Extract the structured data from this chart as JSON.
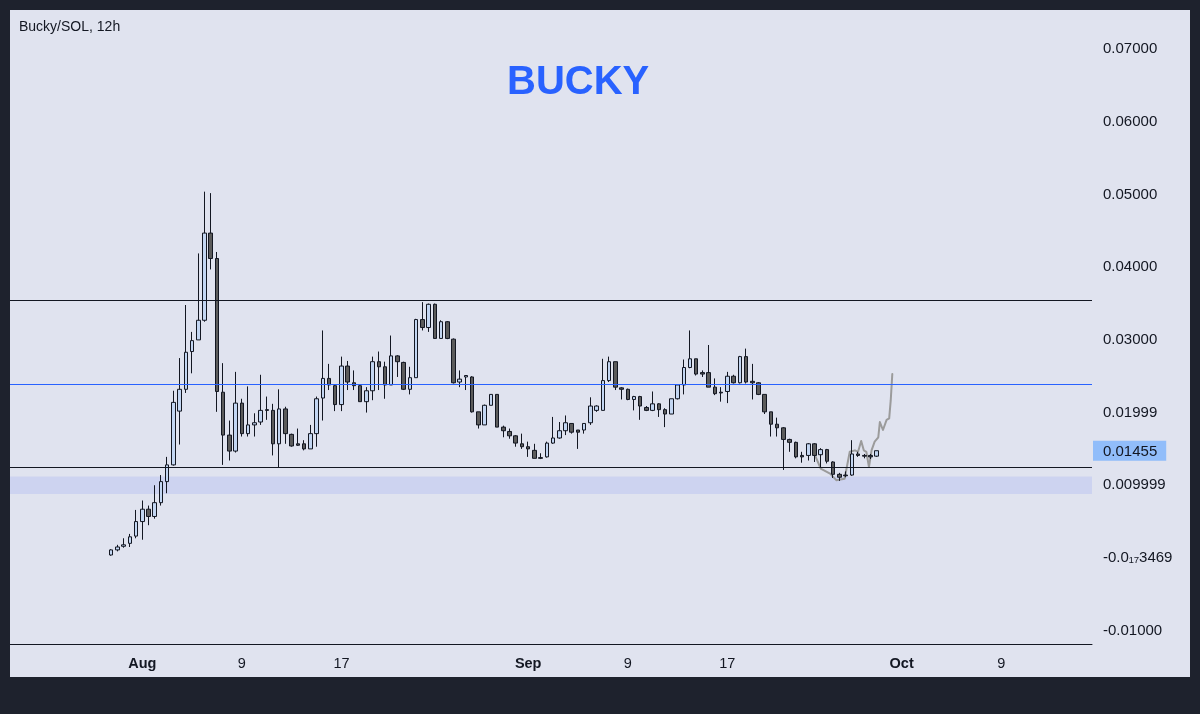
{
  "chart_data": {
    "type": "candlestick",
    "title": "BUCKY",
    "subtitle": "Bucky/SOL, 12h",
    "x": [
      "--07-29T12:00",
      "--07-30T00:00",
      "--07-30T12:00",
      "--07-31T00:00",
      "--07-31T12:00",
      "--08-01T00:00",
      "--08-01T12:00",
      "--08-02T00:00",
      "--08-02T12:00",
      "--08-03T00:00",
      "--08-03T12:00",
      "--08-04T00:00",
      "--08-04T12:00",
      "--08-05T00:00",
      "--08-05T12:00",
      "--08-06T00:00",
      "--08-06T12:00",
      "--08-07T00:00",
      "--08-07T12:00",
      "--08-08T00:00",
      "--08-08T12:00",
      "--08-09T00:00",
      "--08-09T12:00",
      "--08-10T00:00",
      "--08-10T12:00",
      "--08-11T00:00",
      "--08-11T12:00",
      "--08-12T00:00",
      "--08-12T12:00",
      "--08-13T00:00",
      "--08-13T12:00",
      "--08-14T00:00",
      "--08-14T12:00",
      "--08-15T00:00",
      "--08-15T12:00",
      "--08-16T00:00",
      "--08-16T12:00",
      "--08-17T00:00",
      "--08-17T12:00",
      "--08-18T00:00",
      "--08-18T12:00",
      "--08-19T00:00",
      "--08-19T12:00",
      "--08-20T00:00",
      "--08-20T12:00",
      "--08-21T00:00",
      "--08-21T12:00",
      "--08-22T00:00",
      "--08-22T12:00",
      "--08-23T00:00",
      "--08-23T12:00",
      "--08-24T00:00",
      "--08-24T12:00",
      "--08-25T00:00",
      "--08-25T12:00",
      "--08-26T00:00",
      "--08-26T12:00",
      "--08-27T00:00",
      "--08-27T12:00",
      "--08-28T00:00",
      "--08-28T12:00",
      "--08-29T00:00",
      "--08-29T12:00",
      "--08-30T00:00",
      "--08-30T12:00",
      "--08-31T00:00",
      "--08-31T12:00",
      "--09-01T00:00",
      "--09-01T12:00",
      "--09-02T00:00",
      "--09-02T12:00",
      "--09-03T00:00",
      "--09-03T12:00",
      "--09-04T00:00",
      "--09-04T12:00",
      "--09-05T00:00",
      "--09-05T12:00",
      "--09-06T00:00",
      "--09-06T12:00",
      "--09-07T00:00",
      "--09-07T12:00",
      "--09-08T00:00",
      "--09-08T12:00",
      "--09-09T00:00",
      "--09-09T12:00",
      "--09-10T00:00",
      "--09-10T12:00",
      "--09-11T00:00",
      "--09-11T12:00",
      "--09-12T00:00",
      "--09-12T12:00",
      "--09-13T00:00",
      "--09-13T12:00",
      "--09-14T00:00",
      "--09-14T12:00",
      "--09-15T00:00",
      "--09-15T12:00",
      "--09-16T00:00",
      "--09-16T12:00",
      "--09-17T00:00",
      "--09-17T12:00",
      "--09-18T00:00",
      "--09-18T12:00",
      "--09-19T00:00",
      "--09-19T12:00",
      "--09-20T00:00",
      "--09-20T12:00",
      "--09-21T00:00",
      "--09-21T12:00",
      "--09-22T00:00",
      "--09-22T12:00",
      "--09-23T00:00",
      "--09-23T12:00",
      "--09-24T00:00",
      "--09-24T12:00",
      "--09-25T00:00",
      "--09-25T12:00",
      "--09-26T00:00",
      "--09-26T12:00",
      "--09-27T00:00",
      "--09-27T12:00",
      "--09-28T00:00",
      "--09-28T12:00",
      "--09-29T00:00"
    ],
    "ohlc": [
      [
        0.0002,
        0.001,
        0.0001,
        0.0009
      ],
      [
        0.0009,
        0.0016,
        0.0007,
        0.0013
      ],
      [
        0.0014,
        0.0025,
        0.0012,
        0.0016
      ],
      [
        0.0018,
        0.0031,
        0.0013,
        0.0027
      ],
      [
        0.0028,
        0.0064,
        0.0025,
        0.0048
      ],
      [
        0.0048,
        0.0077,
        0.0023,
        0.0065
      ],
      [
        0.0065,
        0.007,
        0.0043,
        0.0055
      ],
      [
        0.0055,
        0.0098,
        0.0052,
        0.0074
      ],
      [
        0.0074,
        0.0112,
        0.007,
        0.0103
      ],
      [
        0.0103,
        0.0137,
        0.0087,
        0.0126
      ],
      [
        0.0126,
        0.0228,
        0.0125,
        0.0212
      ],
      [
        0.02,
        0.0273,
        0.0154,
        0.023
      ],
      [
        0.023,
        0.0346,
        0.0225,
        0.0281
      ],
      [
        0.0282,
        0.0309,
        0.0252,
        0.0297
      ],
      [
        0.0298,
        0.0417,
        0.0298,
        0.0325
      ],
      [
        0.0325,
        0.0502,
        0.0323,
        0.0445
      ],
      [
        0.0445,
        0.05,
        0.0395,
        0.041
      ],
      [
        0.041,
        0.0419,
        0.0199,
        0.0227
      ],
      [
        0.0226,
        0.0266,
        0.0126,
        0.0167
      ],
      [
        0.0167,
        0.0187,
        0.0132,
        0.0145
      ],
      [
        0.0145,
        0.0254,
        0.0143,
        0.0211
      ],
      [
        0.0211,
        0.0217,
        0.0165,
        0.0169
      ],
      [
        0.0169,
        0.0234,
        0.0165,
        0.0181
      ],
      [
        0.0181,
        0.0197,
        0.0165,
        0.0184
      ],
      [
        0.0185,
        0.025,
        0.0181,
        0.0201
      ],
      [
        0.0202,
        0.022,
        0.0188,
        0.0201
      ],
      [
        0.0201,
        0.021,
        0.0139,
        0.0155
      ],
      [
        0.0155,
        0.023,
        0.0123,
        0.0203
      ],
      [
        0.0203,
        0.0206,
        0.0155,
        0.0169
      ],
      [
        0.0168,
        0.0169,
        0.0151,
        0.0152
      ],
      [
        0.0155,
        0.0176,
        0.0152,
        0.0153
      ],
      [
        0.0155,
        0.016,
        0.0146,
        0.0148
      ],
      [
        0.0148,
        0.0181,
        0.0148,
        0.0169
      ],
      [
        0.0169,
        0.022,
        0.0151,
        0.0217
      ],
      [
        0.0218,
        0.0311,
        0.0187,
        0.0245
      ],
      [
        0.0245,
        0.0265,
        0.0229,
        0.0236
      ],
      [
        0.0235,
        0.0236,
        0.02,
        0.0209
      ],
      [
        0.0209,
        0.0275,
        0.02,
        0.0262
      ],
      [
        0.0262,
        0.0269,
        0.0229,
        0.024
      ],
      [
        0.0239,
        0.0256,
        0.0229,
        0.0235
      ],
      [
        0.0235,
        0.0236,
        0.0213,
        0.0213
      ],
      [
        0.0213,
        0.0233,
        0.0198,
        0.0228
      ],
      [
        0.0228,
        0.0275,
        0.0215,
        0.0268
      ],
      [
        0.0268,
        0.0282,
        0.0229,
        0.0261
      ],
      [
        0.0261,
        0.0268,
        0.0217,
        0.0236
      ],
      [
        0.0236,
        0.0304,
        0.0236,
        0.0276
      ],
      [
        0.0276,
        0.0277,
        0.0247,
        0.0268
      ],
      [
        0.0267,
        0.0268,
        0.0229,
        0.023
      ],
      [
        0.023,
        0.0261,
        0.0223,
        0.0246
      ],
      [
        0.0246,
        0.0327,
        0.0246,
        0.0326
      ],
      [
        0.0326,
        0.035,
        0.0311,
        0.0315
      ],
      [
        0.0315,
        0.0348,
        0.0309,
        0.0347
      ],
      [
        0.0347,
        0.0348,
        0.03,
        0.03
      ],
      [
        0.03,
        0.0325,
        0.03,
        0.0323
      ],
      [
        0.0323,
        0.0324,
        0.0299,
        0.03
      ],
      [
        0.0299,
        0.03,
        0.0238,
        0.0239
      ],
      [
        0.024,
        0.0256,
        0.0233,
        0.0244
      ],
      [
        0.0247,
        0.0249,
        0.0229,
        0.0249
      ],
      [
        0.0247,
        0.0248,
        0.0198,
        0.0199
      ],
      [
        0.0199,
        0.0199,
        0.0176,
        0.0181
      ],
      [
        0.0181,
        0.0209,
        0.0181,
        0.0208
      ],
      [
        0.0208,
        0.0223,
        0.0208,
        0.0223
      ],
      [
        0.0223,
        0.0223,
        0.0178,
        0.0178
      ],
      [
        0.0178,
        0.018,
        0.0164,
        0.0173
      ],
      [
        0.0172,
        0.0176,
        0.0162,
        0.0166
      ],
      [
        0.0166,
        0.0167,
        0.0151,
        0.0156
      ],
      [
        0.0155,
        0.0169,
        0.0148,
        0.0151
      ],
      [
        0.0151,
        0.0158,
        0.0137,
        0.0148
      ],
      [
        0.0146,
        0.0155,
        0.0135,
        0.0135
      ],
      [
        0.0136,
        0.0142,
        0.0134,
        0.0135
      ],
      [
        0.0137,
        0.0158,
        0.0136,
        0.0156
      ],
      [
        0.0156,
        0.0192,
        0.0155,
        0.0163
      ],
      [
        0.0163,
        0.0185,
        0.0162,
        0.0173
      ],
      [
        0.0173,
        0.0194,
        0.0167,
        0.0184
      ],
      [
        0.0183,
        0.0183,
        0.0169,
        0.0171
      ],
      [
        0.0174,
        0.0174,
        0.0148,
        0.0171
      ],
      [
        0.0174,
        0.0183,
        0.0169,
        0.0183
      ],
      [
        0.0184,
        0.0219,
        0.0181,
        0.0207
      ],
      [
        0.0201,
        0.0208,
        0.0199,
        0.0207
      ],
      [
        0.0201,
        0.0272,
        0.0201,
        0.0242
      ],
      [
        0.0242,
        0.0275,
        0.024,
        0.0268
      ],
      [
        0.0268,
        0.0268,
        0.0229,
        0.0233
      ],
      [
        0.0232,
        0.0233,
        0.0216,
        0.023
      ],
      [
        0.023,
        0.0231,
        0.0215,
        0.0216
      ],
      [
        0.0216,
        0.0221,
        0.0201,
        0.022
      ],
      [
        0.022,
        0.0221,
        0.0188,
        0.0207
      ],
      [
        0.0205,
        0.0207,
        0.02,
        0.0201
      ],
      [
        0.0201,
        0.0227,
        0.02,
        0.021
      ],
      [
        0.021,
        0.0211,
        0.0192,
        0.0202
      ],
      [
        0.0202,
        0.0204,
        0.0178,
        0.0196
      ],
      [
        0.0196,
        0.0217,
        0.0196,
        0.0217
      ],
      [
        0.0217,
        0.0237,
        0.0216,
        0.0236
      ],
      [
        0.0236,
        0.0271,
        0.0223,
        0.026
      ],
      [
        0.026,
        0.0311,
        0.0259,
        0.0272
      ],
      [
        0.0272,
        0.0272,
        0.0249,
        0.0251
      ],
      [
        0.0253,
        0.0256,
        0.0247,
        0.0251
      ],
      [
        0.0253,
        0.0291,
        0.0233,
        0.0233
      ],
      [
        0.0233,
        0.0245,
        0.0222,
        0.0224
      ],
      [
        0.0226,
        0.0233,
        0.0213,
        0.0225
      ],
      [
        0.0227,
        0.0254,
        0.0211,
        0.0248
      ],
      [
        0.0248,
        0.025,
        0.0238,
        0.0239
      ],
      [
        0.0239,
        0.0276,
        0.0238,
        0.0275
      ],
      [
        0.0275,
        0.0286,
        0.0238,
        0.024
      ],
      [
        0.0241,
        0.0265,
        0.0216,
        0.0239
      ],
      [
        0.0239,
        0.024,
        0.0222,
        0.0223
      ],
      [
        0.0223,
        0.0223,
        0.0196,
        0.0199
      ],
      [
        0.0199,
        0.0199,
        0.0165,
        0.0182
      ],
      [
        0.0182,
        0.0191,
        0.0165,
        0.0177
      ],
      [
        0.0177,
        0.0178,
        0.0119,
        0.0161
      ],
      [
        0.0161,
        0.0162,
        0.0144,
        0.0157
      ],
      [
        0.0157,
        0.0158,
        0.0135,
        0.0137
      ],
      [
        0.0139,
        0.0144,
        0.0129,
        0.0137
      ],
      [
        0.0139,
        0.0156,
        0.0132,
        0.0155
      ],
      [
        0.0155,
        0.0156,
        0.013,
        0.0139
      ],
      [
        0.014,
        0.0149,
        0.0123,
        0.0147
      ],
      [
        0.0147,
        0.0148,
        0.0128,
        0.0131
      ],
      [
        0.013,
        0.0131,
        0.0108,
        0.0113
      ],
      [
        0.0113,
        0.0115,
        0.0104,
        0.0109
      ],
      [
        0.0112,
        0.0117,
        0.0109,
        0.0111
      ],
      [
        0.0112,
        0.016,
        0.0111,
        0.0141
      ],
      [
        0.0141,
        0.0144,
        0.0137,
        0.0139
      ],
      [
        0.0139,
        0.0141,
        0.0135,
        0.0138
      ],
      [
        0.0139,
        0.0141,
        0.0134,
        0.0137
      ],
      [
        0.0138,
        0.01455,
        0.0137,
        0.01455
      ]
    ],
    "colors": [
      "#c3d6f2",
      "#c3d6f2",
      "#c3d6f2",
      "#c3d6f2",
      "#c3d6f2",
      "#c3d6f2",
      "#5b5b5b",
      "#c3d6f2",
      "#c3d6f2",
      "#c3d6f2",
      "#c3d6f2",
      "#c3d6f2",
      "#c3d6f2",
      "#c3d6f2",
      "#c3d6f2",
      "#c3d6f2",
      "#5b5b5b",
      "#5b5b5b",
      "#5b5b5b",
      "#5b5b5b",
      "#c3d6f2",
      "#5b5b5b",
      "#c3d6f2",
      "#c3d6f2",
      "#c3d6f2",
      "#5b5b5b",
      "#5b5b5b",
      "#c3d6f2",
      "#5b5b5b",
      "#5b5b5b",
      "#5b5b5b",
      "#5b5b5b",
      "#c3d6f2",
      "#c3d6f2",
      "#c3d6f2",
      "#5b5b5b",
      "#5b5b5b",
      "#c3d6f2",
      "#5b5b5b",
      "#5b5b5b",
      "#5b5b5b",
      "#c3d6f2",
      "#c3d6f2",
      "#5b5b5b",
      "#5b5b5b",
      "#c3d6f2",
      "#5b5b5b",
      "#5b5b5b",
      "#c3d6f2",
      "#c3d6f2",
      "#5b5b5b",
      "#c3d6f2",
      "#5b5b5b",
      "#c3d6f2",
      "#5b5b5b",
      "#5b5b5b",
      "#c3d6f2",
      "#c3d6f2",
      "#5b5b5b",
      "#5b5b5b",
      "#c3d6f2",
      "#c3d6f2",
      "#5b5b5b",
      "#5b5b5b",
      "#5b5b5b",
      "#5b5b5b",
      "#5b5b5b",
      "#5b5b5b",
      "#5b5b5b",
      "#5b5b5b",
      "#c3d6f2",
      "#c3d6f2",
      "#c3d6f2",
      "#c3d6f2",
      "#5b5b5b",
      "#5b5b5b",
      "#c3d6f2",
      "#c3d6f2",
      "#c3d6f2",
      "#c3d6f2",
      "#c3d6f2",
      "#5b5b5b",
      "#5b5b5b",
      "#5b5b5b",
      "#c3d6f2",
      "#5b5b5b",
      "#5b5b5b",
      "#c3d6f2",
      "#5b5b5b",
      "#5b5b5b",
      "#c3d6f2",
      "#c3d6f2",
      "#c3d6f2",
      "#c3d6f2",
      "#5b5b5b",
      "#5b5b5b",
      "#5b5b5b",
      "#5b5b5b",
      "#5b5b5b",
      "#c3d6f2",
      "#5b5b5b",
      "#c3d6f2",
      "#5b5b5b",
      "#5b5b5b",
      "#5b5b5b",
      "#5b5b5b",
      "#5b5b5b",
      "#5b5b5b",
      "#5b5b5b",
      "#5b5b5b",
      "#5b5b5b",
      "#5b5b5b",
      "#c3d6f2",
      "#5b5b5b",
      "#c3d6f2",
      "#5b5b5b",
      "#5b5b5b",
      "#5b5b5b",
      "#5b5b5b",
      "#c3d6f2",
      "#5b5b5b",
      "#5b5b5b",
      "#5b5b5b",
      "#c3d6f2"
    ],
    "series": [
      {
        "type": "line",
        "color": "#9b9b9b",
        "x": [
          "--09-24T01:00",
          "--09-24T12:00",
          "--09-25T06:00",
          "--09-25T18:00",
          "--09-26T10:00",
          "--09-26T20:00",
          "--09-27T06:00",
          "--09-27T12:00",
          "--09-27T18:00",
          "--09-27T23:00",
          "--09-28T04:00",
          "--09-28T09:00",
          "--09-28T14:00",
          "--09-28T20:00",
          "--09-29T03:00",
          "--09-29T06:00",
          "--09-29T12:00",
          "--09-29T19:00",
          "--09-30T00:00",
          "--09-30T03:00",
          "--09-30T06:00"
        ],
        "values": [
          0.0139,
          0.0121,
          0.0114,
          0.0105,
          0.0107,
          0.0144,
          0.0146,
          0.0144,
          0.0159,
          0.0146,
          0.0144,
          0.0123,
          0.0146,
          0.0158,
          0.0164,
          0.0185,
          0.0174,
          0.0188,
          0.019,
          0.0215,
          0.0251
        ]
      }
    ],
    "xlim": [
      "--07-21T09:00",
      "--10-16T07:00"
    ],
    "xticks": [
      {
        "value": "--08-01",
        "label": "Aug"
      },
      {
        "value": "--08-09",
        "label": "9"
      },
      {
        "value": "--08-17",
        "label": "17"
      },
      {
        "value": "--09-01",
        "label": "Sep"
      },
      {
        "value": "--09-09",
        "label": "9"
      },
      {
        "value": "--09-17",
        "label": "17"
      },
      {
        "value": "--10-01",
        "label": "Oct"
      },
      {
        "value": "--10-09",
        "label": "9"
      }
    ],
    "ylim": [
      -0.01205,
      0.0752
    ],
    "yticks": [
      {
        "value": -0.01,
        "label": "-0.01000"
      },
      {
        "value": -3.469e-18,
        "label": "-0.0₁₇3469"
      },
      {
        "value": 0.009999,
        "label": "0.009999"
      },
      {
        "value": 0.01999,
        "label": "0.01999"
      },
      {
        "value": 0.03,
        "label": "0.03000"
      },
      {
        "value": 0.04,
        "label": "0.04000"
      },
      {
        "value": 0.05,
        "label": "0.05000"
      },
      {
        "value": 0.06,
        "label": "0.06000"
      },
      {
        "value": 0.07,
        "label": "0.07000"
      }
    ],
    "ref_lines": [
      {
        "axis": "y",
        "value": 0.0352,
        "color": "#131722"
      },
      {
        "axis": "y",
        "value": 0.0237,
        "color": "#2962ff"
      },
      {
        "axis": "y",
        "value": 0.0123,
        "color": "#131722"
      }
    ],
    "bands": [
      {
        "axis": "y",
        "from": 0.0086,
        "to": 0.011,
        "color": "#cdd3f0"
      }
    ],
    "annotations": [
      "0.01455"
    ],
    "grid": false
  }
}
